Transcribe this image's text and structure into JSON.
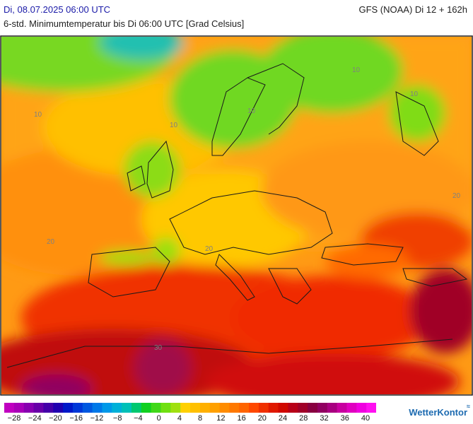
{
  "header": {
    "date": "Di, 08.07.2025 06:00 UTC",
    "model": "GFS (NOAA) Di 12 + 162h",
    "subtitle": "6-std. Minimumtemperatur bis Di 06:00 UTC [Grad Celsius]"
  },
  "map_labels": [
    "10",
    "10",
    "10",
    "10",
    "10",
    "20",
    "20",
    "20",
    "30"
  ],
  "scale": {
    "ticks": [
      "−28",
      "−24",
      "−20",
      "−16",
      "−12",
      "−8",
      "−4",
      "0",
      "4",
      "8",
      "12",
      "16",
      "20",
      "24",
      "28",
      "32",
      "36",
      "40"
    ],
    "colors": [
      "#c000c0",
      "#a800b8",
      "#8800b0",
      "#6800a8",
      "#4400a8",
      "#2000b0",
      "#0018c8",
      "#0038d8",
      "#0058e0",
      "#0078e8",
      "#0098e8",
      "#00b0d8",
      "#00c0b8",
      "#00c870",
      "#10d020",
      "#40d818",
      "#70e010",
      "#a0e010",
      "#ffd000",
      "#ffc000",
      "#ffb000",
      "#ffa000",
      "#ff8c00",
      "#ff7800",
      "#ff6400",
      "#ff4800",
      "#f03000",
      "#e01800",
      "#d00800",
      "#b80018",
      "#a00028",
      "#880040",
      "#900060",
      "#a80080",
      "#c800a0",
      "#e000c0",
      "#f000e0",
      "#ff10f0"
    ]
  },
  "logo": {
    "text": "WetterKontor"
  }
}
